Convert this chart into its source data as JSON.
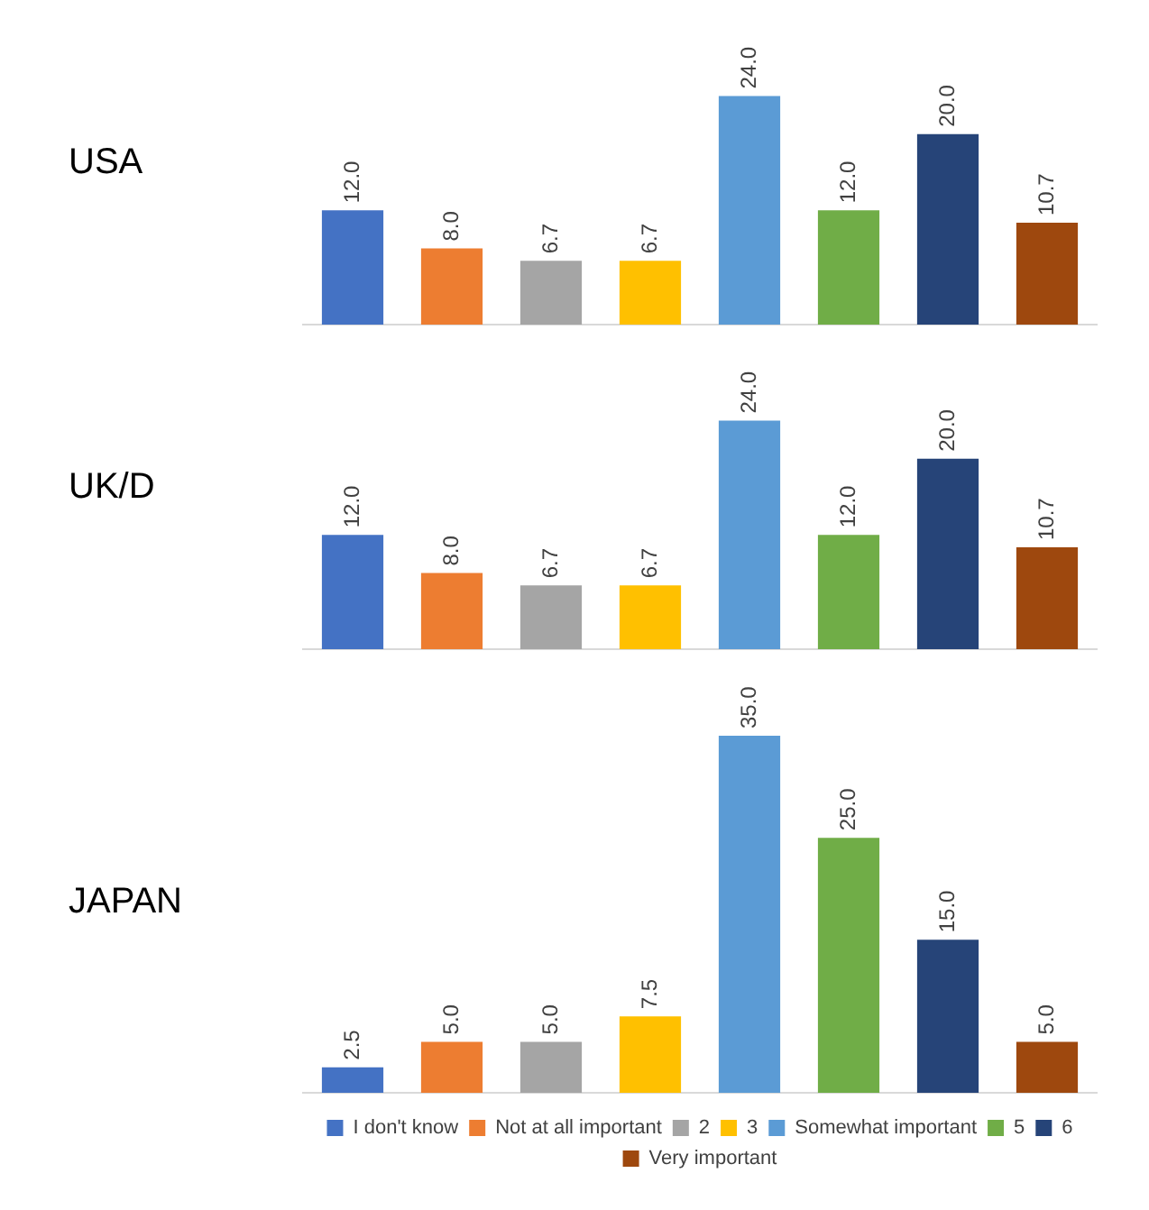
{
  "chart_data": [
    {
      "type": "bar",
      "title": "USA",
      "categories": [
        null,
        null,
        null,
        null,
        null,
        null,
        null,
        null
      ],
      "tick_labels": false,
      "legend": false,
      "colors": [
        "#4472c4",
        "#ed7d31",
        "#a5a5a5",
        "#ffc000",
        "#5b9bd5",
        "#70ad47",
        "#264478",
        "#9e480e"
      ],
      "values": [
        12.0,
        8.0,
        6.7,
        6.7,
        24.0,
        12.0,
        20.0,
        10.7
      ],
      "value_labels": [
        "12.0",
        "8.0",
        "6.7",
        "6.7",
        "24.0",
        "12.0",
        "20.0",
        "10.7"
      ]
    },
    {
      "type": "bar",
      "title": "UK/D",
      "categories": [
        null,
        null,
        null,
        null,
        null,
        null,
        null,
        null
      ],
      "tick_labels": false,
      "legend": false,
      "colors": [
        "#4472c4",
        "#ed7d31",
        "#a5a5a5",
        "#ffc000",
        "#5b9bd5",
        "#70ad47",
        "#264478",
        "#9e480e"
      ],
      "values": [
        12.0,
        8.0,
        6.7,
        6.7,
        24.0,
        12.0,
        20.0,
        10.7
      ],
      "value_labels": [
        "12.0",
        "8.0",
        "6.7",
        "6.7",
        "24.0",
        "12.0",
        "20.0",
        "10.7"
      ]
    },
    {
      "type": "bar",
      "title": "JAPAN",
      "categories": [
        null,
        null,
        null,
        null,
        null,
        null,
        null,
        null
      ],
      "tick_labels": false,
      "legend": "bottom",
      "series": [
        {
          "name": "I don't know",
          "color": "#4472c4",
          "values": [
            2.5,
            null,
            null,
            null,
            null,
            null,
            null,
            null
          ],
          "value_labels": [
            "2.5",
            null,
            null,
            null,
            null,
            null,
            null,
            null
          ]
        },
        {
          "name": "Not at all important",
          "color": "#ed7d31",
          "values": [
            null,
            5.0,
            null,
            null,
            null,
            null,
            null,
            null
          ],
          "value_labels": [
            null,
            "5.0",
            null,
            null,
            null,
            null,
            null,
            null
          ]
        },
        {
          "name": "2",
          "color": "#a5a5a5",
          "values": [
            null,
            null,
            5.0,
            null,
            null,
            null,
            null,
            null
          ],
          "value_labels": [
            null,
            null,
            "5.0",
            null,
            null,
            null,
            null,
            null
          ]
        },
        {
          "name": "3",
          "color": "#ffc000",
          "values": [
            null,
            null,
            null,
            7.5,
            null,
            null,
            null,
            null
          ],
          "value_labels": [
            null,
            null,
            null,
            "7.5",
            null,
            null,
            null,
            null
          ]
        },
        {
          "name": "Somewhat important",
          "color": "#5b9bd5",
          "values": [
            null,
            null,
            null,
            null,
            35.0,
            null,
            null,
            null
          ],
          "value_labels": [
            null,
            null,
            null,
            null,
            "35.0",
            null,
            null,
            null
          ]
        },
        {
          "name": "5",
          "color": "#70ad47",
          "values": [
            null,
            null,
            null,
            null,
            null,
            25.0,
            null,
            null
          ],
          "value_labels": [
            null,
            null,
            null,
            null,
            null,
            "25.0",
            null,
            null
          ]
        },
        {
          "name": "6",
          "color": "#264478",
          "values": [
            null,
            null,
            null,
            null,
            null,
            null,
            15.0,
            null
          ],
          "value_labels": [
            null,
            null,
            null,
            null,
            null,
            null,
            "15.0",
            null
          ]
        },
        {
          "name": "Very important",
          "color": "#9e480e",
          "values": [
            null,
            null,
            null,
            null,
            null,
            null,
            null,
            5.0
          ],
          "value_labels": [
            null,
            null,
            null,
            null,
            null,
            null,
            null,
            "5.0"
          ]
        }
      ]
    }
  ]
}
